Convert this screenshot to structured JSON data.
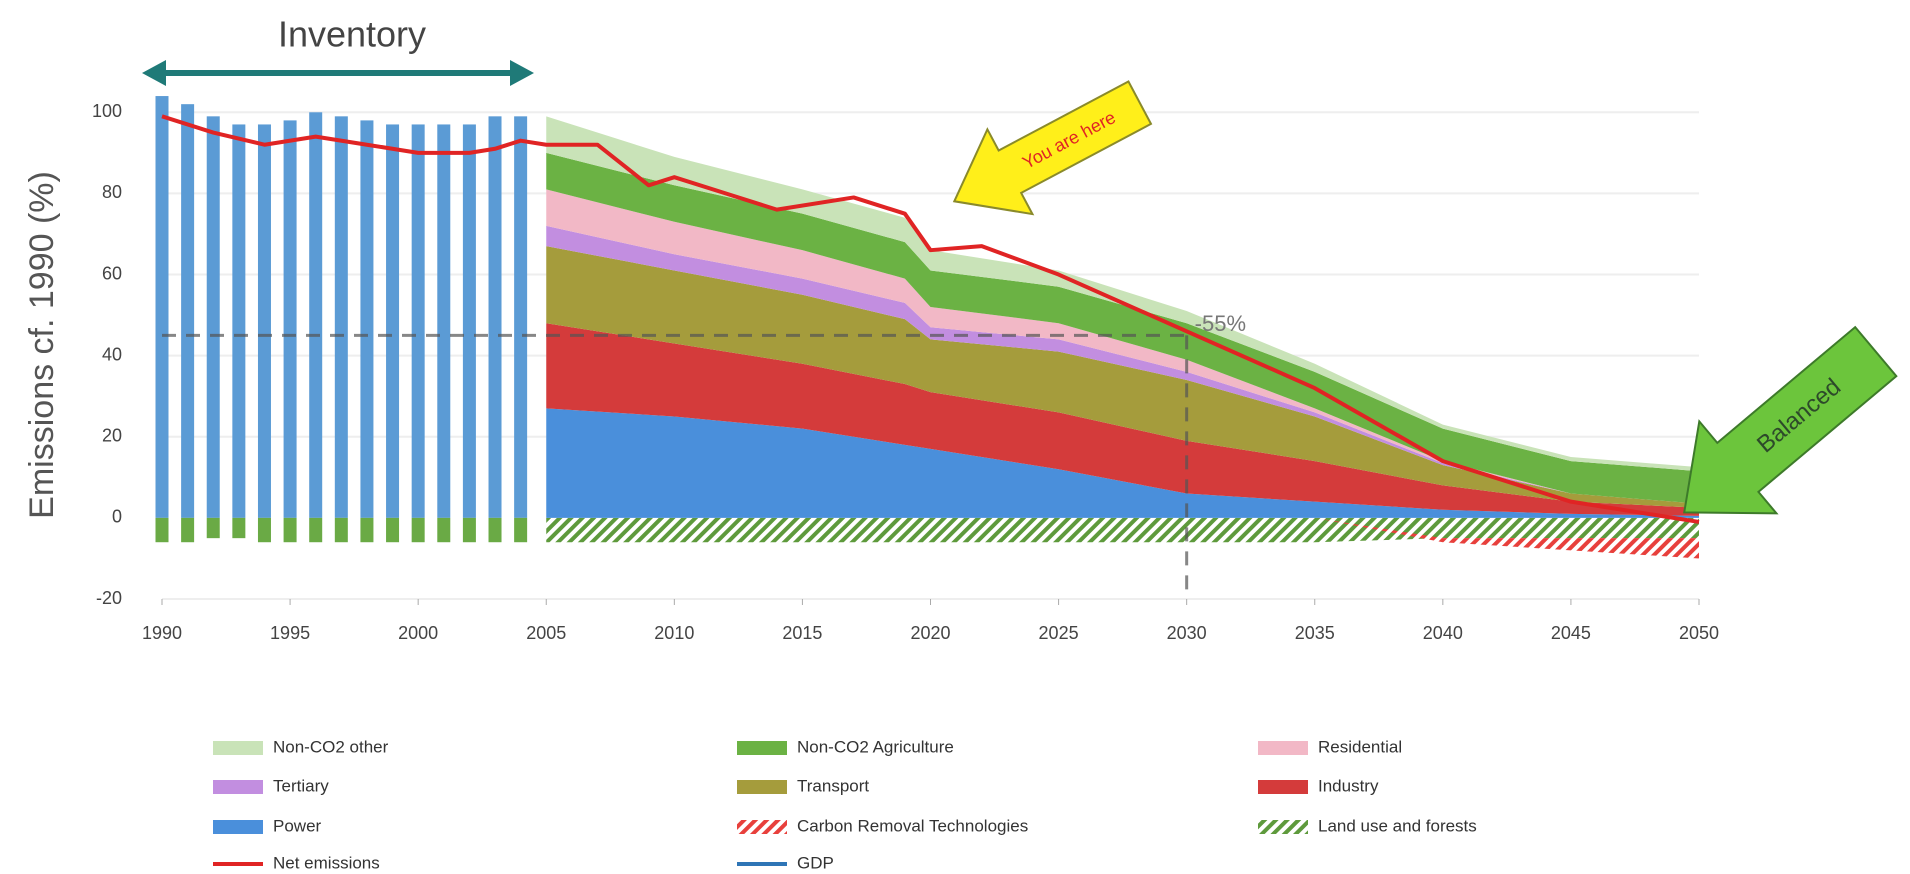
{
  "chart_data": {
    "type": "stacked-area",
    "y_label": "Emissions cf. 1990 (%)",
    "xlim": [
      1990,
      2050
    ],
    "xticks": [
      1990,
      1995,
      2000,
      2005,
      2010,
      2015,
      2020,
      2025,
      2030,
      2035,
      2040,
      2045,
      2050
    ],
    "ylim": [
      -20,
      105
    ],
    "yticks": [
      -20,
      0,
      20,
      40,
      60,
      80,
      100
    ],
    "grid": true,
    "inventory": {
      "label": "Inventory",
      "color": "#5b9bd5",
      "sink_color": "#6aaa45",
      "x": [
        1990,
        1991,
        1992,
        1993,
        1994,
        1995,
        1996,
        1997,
        1998,
        1999,
        2000,
        2001,
        2002,
        2003,
        2004
      ],
      "values": [
        104,
        102,
        99,
        97,
        97,
        98,
        100,
        99,
        98,
        97,
        97,
        97,
        97,
        99,
        99
      ],
      "sinks": [
        -6,
        -6,
        -5,
        -5,
        -6,
        -6,
        -6,
        -6,
        -6,
        -6,
        -6,
        -6,
        -6,
        -6,
        -6
      ]
    },
    "x": [
      2005,
      2010,
      2015,
      2019,
      2020,
      2025,
      2030,
      2035,
      2040,
      2045,
      2050
    ],
    "series": [
      {
        "name": "Non-CO2 other",
        "style": "area",
        "color": "#c9e3b8",
        "values": [
          9,
          7,
          6,
          6,
          5,
          4,
          3,
          2,
          1,
          1,
          1
        ]
      },
      {
        "name": "Non-CO2 Agriculture",
        "style": "area",
        "color": "#6bb244",
        "values": [
          9,
          9,
          9,
          9,
          9,
          9,
          9,
          9,
          8,
          8,
          8
        ]
      },
      {
        "name": "Residential",
        "style": "area",
        "color": "#f2b8c6",
        "values": [
          9,
          8,
          7,
          6,
          5,
          4,
          3,
          1,
          0.5,
          0,
          0
        ]
      },
      {
        "name": "Tertiary",
        "style": "area",
        "color": "#c28ee0",
        "values": [
          5,
          4,
          4,
          4,
          3,
          3,
          2,
          1,
          0.5,
          0,
          0
        ]
      },
      {
        "name": "Transport",
        "style": "area",
        "color": "#a59c3c",
        "values": [
          19,
          18,
          17,
          16,
          13,
          15,
          15,
          11,
          5,
          2,
          1
        ]
      },
      {
        "name": "Industry",
        "style": "area",
        "color": "#d43b3b",
        "values": [
          21,
          18,
          16,
          15,
          14,
          14,
          13,
          10,
          6,
          3,
          2
        ]
      },
      {
        "name": "Power",
        "style": "area",
        "color": "#4a8fdb",
        "values": [
          27,
          25,
          22,
          18,
          17,
          12,
          6,
          4,
          2,
          1,
          0.5
        ]
      },
      {
        "name": "Carbon Removal Technologies",
        "style": "hatch",
        "color": "#e8403c",
        "values": [
          0,
          0,
          0,
          0,
          0,
          0,
          0,
          0,
          -1,
          -3,
          -5
        ]
      },
      {
        "name": "Land use and forests",
        "style": "hatch",
        "color": "#5e9a3c",
        "values": [
          -6,
          -6,
          -6,
          -6,
          -6,
          -6,
          -6,
          -6,
          -5,
          -5,
          -5
        ]
      },
      {
        "name": "Net emissions",
        "style": "line",
        "color": "#e02424",
        "x": [
          1990,
          1992,
          1994,
          1996,
          1998,
          2000,
          2002,
          2003,
          2004,
          2005,
          2007,
          2009,
          2010,
          2012,
          2014,
          2017,
          2019,
          2020,
          2022,
          2025,
          2030,
          2035,
          2040,
          2045,
          2050
        ],
        "values": [
          99,
          95,
          92,
          94,
          92,
          90,
          90,
          91,
          93,
          92,
          92,
          82,
          84,
          80,
          76,
          79,
          75,
          66,
          67,
          60,
          46,
          32,
          14,
          4,
          -1
        ]
      },
      {
        "name": "GDP",
        "style": "line",
        "color": "#2e75b6"
      }
    ],
    "target": {
      "label": "-55%",
      "year": 2030,
      "value": 45
    },
    "annotations": {
      "here": "You are here",
      "balanced": "Balanced"
    }
  }
}
